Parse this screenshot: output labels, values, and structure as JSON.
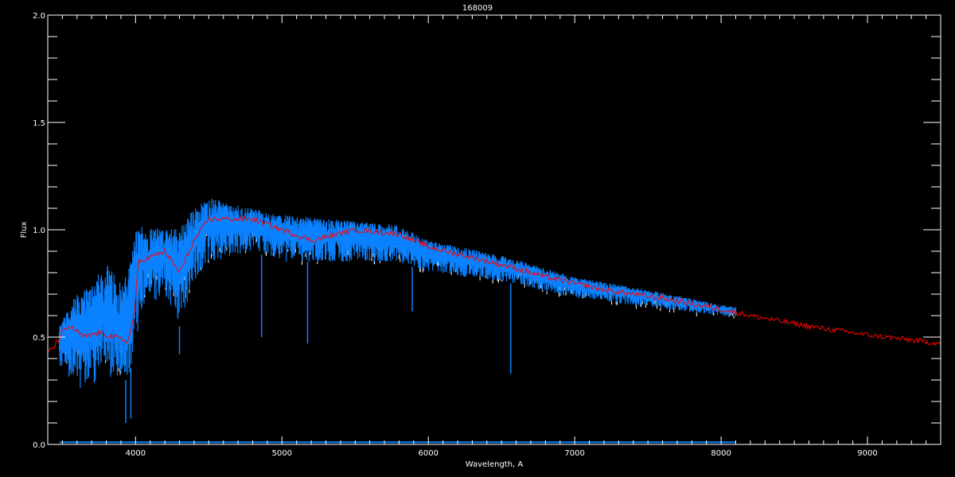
{
  "chart_data": {
    "type": "line",
    "title": "168009",
    "xlabel": "Wavelength, A",
    "ylabel": "Flux",
    "xlim": [
      3400,
      9500
    ],
    "ylim": [
      0.0,
      2.0
    ],
    "xticks": [
      4000,
      5000,
      6000,
      7000,
      8000,
      9000
    ],
    "yticks": [
      0.0,
      0.5,
      1.0,
      1.5,
      2.0
    ],
    "ytick_labels": [
      "0.0",
      "0.5",
      "1.0",
      "1.5",
      "2.0"
    ],
    "grid": false,
    "colors": {
      "observed": "#0a82ff",
      "model": "#ff0000",
      "background": "#000000",
      "axes": "#ffffff"
    },
    "series": [
      {
        "role": "observed",
        "x": [
          3480,
          3550,
          3600,
          3700,
          3800,
          3900,
          3950,
          4000,
          4050,
          4200,
          4300,
          4400,
          4500,
          4800,
          5000,
          5500,
          5800,
          6000,
          6500,
          7000,
          7500,
          8000,
          8100
        ],
        "y_upper": [
          0.55,
          0.65,
          0.7,
          0.75,
          0.85,
          0.75,
          0.8,
          1.0,
          1.03,
          1.0,
          1.02,
          1.1,
          1.15,
          1.1,
          1.07,
          1.04,
          1.02,
          0.95,
          0.88,
          0.78,
          0.72,
          0.65,
          0.64
        ],
        "y_lower": [
          0.35,
          0.3,
          0.25,
          0.28,
          0.3,
          0.3,
          0.3,
          0.45,
          0.6,
          0.7,
          0.55,
          0.75,
          0.85,
          0.9,
          0.85,
          0.85,
          0.85,
          0.8,
          0.76,
          0.68,
          0.64,
          0.6,
          0.59
        ],
        "absorption_lines": [
          {
            "x": 3933,
            "y": 0.1
          },
          {
            "x": 3968,
            "y": 0.12
          },
          {
            "x": 4300,
            "y": 0.42
          },
          {
            "x": 4861,
            "y": 0.5
          },
          {
            "x": 5175,
            "y": 0.47
          },
          {
            "x": 5890,
            "y": 0.62
          },
          {
            "x": 6563,
            "y": 0.33
          }
        ]
      },
      {
        "role": "model",
        "x": [
          3400,
          3450,
          3500,
          3550,
          3650,
          3750,
          3850,
          3950,
          3990,
          4020,
          4200,
          4300,
          4400,
          4500,
          4800,
          5000,
          5200,
          5500,
          5800,
          6000,
          6300,
          6600,
          6800,
          7200,
          7600,
          8000,
          8200,
          8600,
          9000,
          9500
        ],
        "y": [
          0.43,
          0.46,
          0.52,
          0.55,
          0.5,
          0.52,
          0.5,
          0.48,
          0.6,
          0.85,
          0.9,
          0.8,
          0.95,
          1.05,
          1.05,
          1.0,
          0.95,
          1.0,
          0.98,
          0.92,
          0.87,
          0.82,
          0.78,
          0.72,
          0.68,
          0.63,
          0.6,
          0.55,
          0.51,
          0.47
        ]
      },
      {
        "role": "error",
        "x": [
          3480,
          8100
        ],
        "y": [
          0.01,
          0.01
        ]
      }
    ]
  }
}
